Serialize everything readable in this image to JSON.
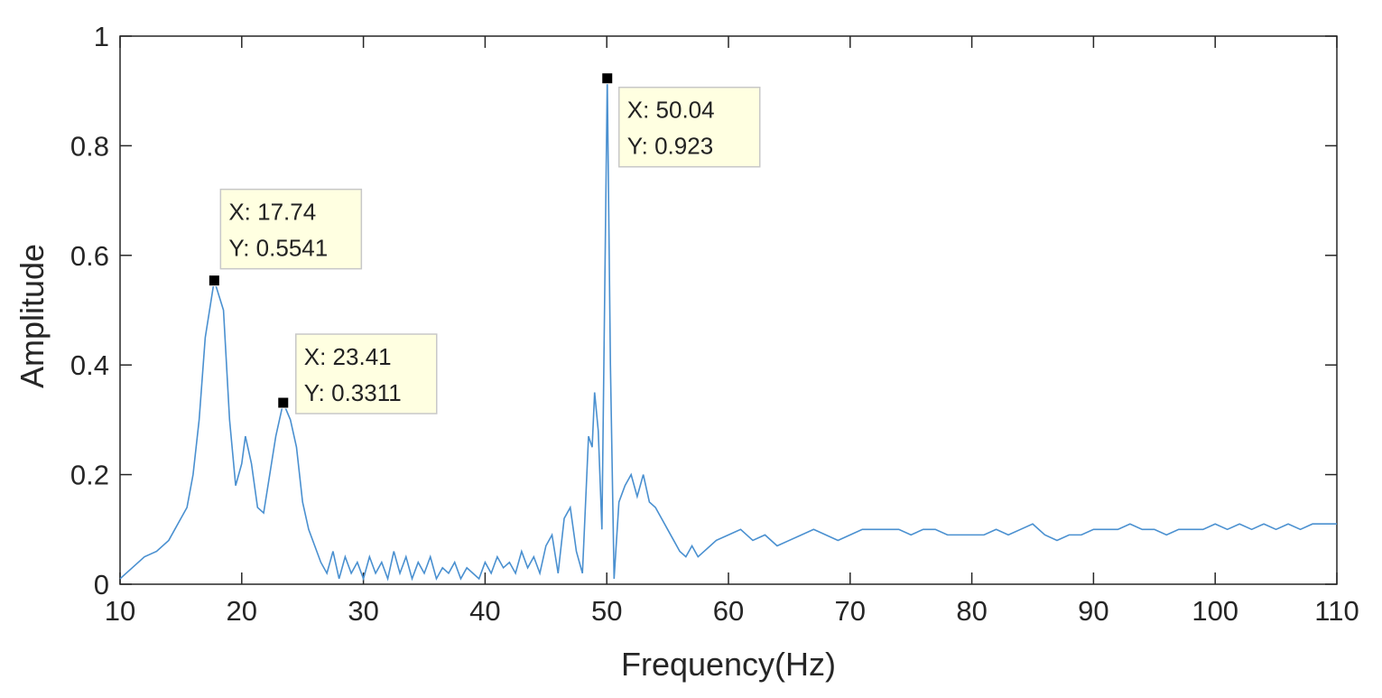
{
  "chart_data": {
    "type": "line",
    "xlabel": "Frequency(Hz)",
    "ylabel": "Amplitude",
    "xlim": [
      10,
      110
    ],
    "ylim": [
      0,
      1
    ],
    "xticks": [
      10,
      20,
      30,
      40,
      50,
      60,
      70,
      80,
      90,
      100,
      110
    ],
    "yticks": [
      0,
      0.2,
      0.4,
      0.6,
      0.8,
      1
    ],
    "x": [
      10,
      11,
      12,
      13,
      14,
      15,
      15.5,
      16,
      16.5,
      17,
      17.74,
      18.5,
      19,
      19.5,
      20,
      20.3,
      20.8,
      21.3,
      21.8,
      22.3,
      22.8,
      23.41,
      24,
      24.5,
      25,
      25.5,
      26,
      26.5,
      27,
      27.5,
      28,
      28.5,
      29,
      29.5,
      30,
      30.5,
      31,
      31.5,
      32,
      32.5,
      33,
      33.5,
      34,
      34.5,
      35,
      35.5,
      36,
      36.5,
      37,
      37.5,
      38,
      38.5,
      39,
      39.5,
      40,
      40.5,
      41,
      41.5,
      42,
      42.5,
      43,
      43.5,
      44,
      44.5,
      45,
      45.5,
      46,
      46.5,
      47,
      47.5,
      48,
      48.5,
      48.8,
      49,
      49.3,
      49.6,
      50.04,
      50.3,
      50.6,
      51,
      51.5,
      52,
      52.5,
      53,
      53.5,
      54,
      54.5,
      55,
      55.5,
      56,
      56.5,
      57,
      57.5,
      58,
      58.5,
      59,
      60,
      61,
      62,
      63,
      64,
      65,
      66,
      67,
      68,
      69,
      70,
      71,
      72,
      73,
      74,
      75,
      76,
      77,
      78,
      79,
      80,
      81,
      82,
      83,
      84,
      85,
      86,
      87,
      88,
      89,
      90,
      91,
      92,
      93,
      94,
      95,
      96,
      97,
      98,
      99,
      100,
      101,
      102,
      103,
      104,
      105,
      106,
      107,
      108,
      109,
      110
    ],
    "series": [
      {
        "color": "#4a90d0",
        "values": [
          0.01,
          0.03,
          0.05,
          0.06,
          0.08,
          0.12,
          0.14,
          0.2,
          0.3,
          0.45,
          0.5541,
          0.5,
          0.3,
          0.18,
          0.22,
          0.27,
          0.22,
          0.14,
          0.13,
          0.2,
          0.27,
          0.3311,
          0.3,
          0.25,
          0.15,
          0.1,
          0.07,
          0.04,
          0.02,
          0.06,
          0.01,
          0.05,
          0.02,
          0.04,
          0.01,
          0.05,
          0.02,
          0.04,
          0.01,
          0.06,
          0.02,
          0.05,
          0.01,
          0.04,
          0.02,
          0.05,
          0.01,
          0.03,
          0.02,
          0.04,
          0.01,
          0.03,
          0.02,
          0.01,
          0.04,
          0.02,
          0.05,
          0.03,
          0.04,
          0.02,
          0.06,
          0.03,
          0.05,
          0.02,
          0.07,
          0.09,
          0.02,
          0.12,
          0.14,
          0.06,
          0.02,
          0.27,
          0.25,
          0.35,
          0.28,
          0.1,
          0.923,
          0.4,
          0.01,
          0.15,
          0.18,
          0.2,
          0.16,
          0.2,
          0.15,
          0.14,
          0.12,
          0.1,
          0.08,
          0.06,
          0.05,
          0.07,
          0.05,
          0.06,
          0.07,
          0.08,
          0.09,
          0.1,
          0.08,
          0.09,
          0.07,
          0.08,
          0.09,
          0.1,
          0.09,
          0.08,
          0.09,
          0.1,
          0.1,
          0.1,
          0.1,
          0.09,
          0.1,
          0.1,
          0.09,
          0.09,
          0.09,
          0.09,
          0.1,
          0.09,
          0.1,
          0.11,
          0.09,
          0.08,
          0.09,
          0.09,
          0.1,
          0.1,
          0.1,
          0.11,
          0.1,
          0.1,
          0.09,
          0.1,
          0.1,
          0.1,
          0.11,
          0.1,
          0.11,
          0.1,
          0.11,
          0.1,
          0.11,
          0.1,
          0.11,
          0.11,
          0.11
        ]
      }
    ],
    "annotations": [
      {
        "x": 17.74,
        "y": 0.5541,
        "label_x": "X: 17.74",
        "label_y": "Y: 0.5541"
      },
      {
        "x": 23.41,
        "y": 0.3311,
        "label_x": "X: 23.41",
        "label_y": "Y: 0.3311"
      },
      {
        "x": 50.04,
        "y": 0.923,
        "label_x": "X: 50.04",
        "label_y": "Y: 0.923"
      }
    ]
  }
}
